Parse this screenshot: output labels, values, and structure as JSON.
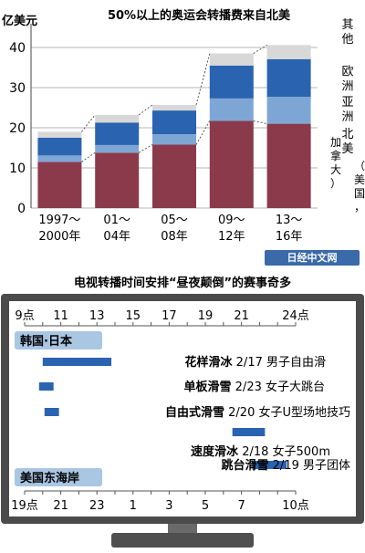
{
  "chart_data": [
    {
      "type": "bar",
      "stacked": true,
      "title": "50%以上的奥运会转播费来自北美",
      "ylabel": "亿美元",
      "ylim": [
        0,
        45
      ],
      "yticks": [
        0,
        10,
        20,
        30,
        40
      ],
      "grid": true,
      "legend_position": "right",
      "categories": [
        {
          "line1": "1997～",
          "line2": "2000年"
        },
        {
          "line1": "01～",
          "line2": "04年"
        },
        {
          "line1": "05～",
          "line2": "08年"
        },
        {
          "line1": "09～",
          "line2": "12年"
        },
        {
          "line1": "13～",
          "line2": "16年"
        }
      ],
      "series": [
        {
          "name": "北美（美国，加拿大）",
          "color": "#8b3a4c",
          "values": [
            11.5,
            13.8,
            15.8,
            21.7,
            21.0
          ]
        },
        {
          "name": "亚洲",
          "color": "#7ea6d4",
          "values": [
            1.6,
            1.9,
            2.6,
            5.6,
            6.7
          ]
        },
        {
          "name": "欧洲",
          "color": "#2a63b0",
          "values": [
            4.4,
            5.6,
            5.9,
            8.2,
            9.4
          ]
        },
        {
          "name": "其他",
          "color": "#d8d8d8",
          "values": [
            1.5,
            1.9,
            1.4,
            3.0,
            3.5
          ]
        }
      ],
      "legend": [
        {
          "label": "其他",
          "series": 3
        },
        {
          "label": "欧洲",
          "series": 2
        },
        {
          "label": "亚洲",
          "series": 1
        },
        {
          "label": "北美",
          "series": 0
        },
        {
          "label": "（美国，",
          "series": 0
        },
        {
          "label": "加拿大）",
          "series": 0
        }
      ]
    },
    {
      "type": "timeline",
      "title": "电视转播时间安排“昼夜颠倒”的赛事奇多",
      "top_axis": {
        "region": "韩国·日本",
        "unit": "点",
        "hours": [
          9,
          11,
          13,
          15,
          17,
          19,
          21,
          24
        ],
        "labels": [
          "9点",
          "11",
          "13",
          "15",
          "17",
          "19",
          "21",
          "24点"
        ]
      },
      "bottom_axis": {
        "region": "美国东海岸",
        "labels": [
          "19点",
          "21",
          "23",
          "1",
          "3",
          "5",
          "7",
          "10点"
        ]
      },
      "events": [
        {
          "sport": "花样滑冰",
          "detail": "2/17 男子自由滑",
          "start": 10.0,
          "end": 13.8
        },
        {
          "sport": "单板滑雪",
          "detail": "2/23 女子大跳台",
          "start": 9.8,
          "end": 10.6
        },
        {
          "sport": "自由式滑雪",
          "detail": "2/20 女子U型场地技巧",
          "start": 10.1,
          "end": 10.9
        },
        {
          "sport": "速度滑冰",
          "detail": "2/18 女子500m",
          "start": 20.5,
          "end": 22.3
        },
        {
          "sport": "跳台滑雪",
          "detail": "2/19 男子团体",
          "start": 21.6,
          "end": 23.5
        }
      ],
      "bar_color": "#2a63b0"
    }
  ],
  "credit": "日经中文网"
}
